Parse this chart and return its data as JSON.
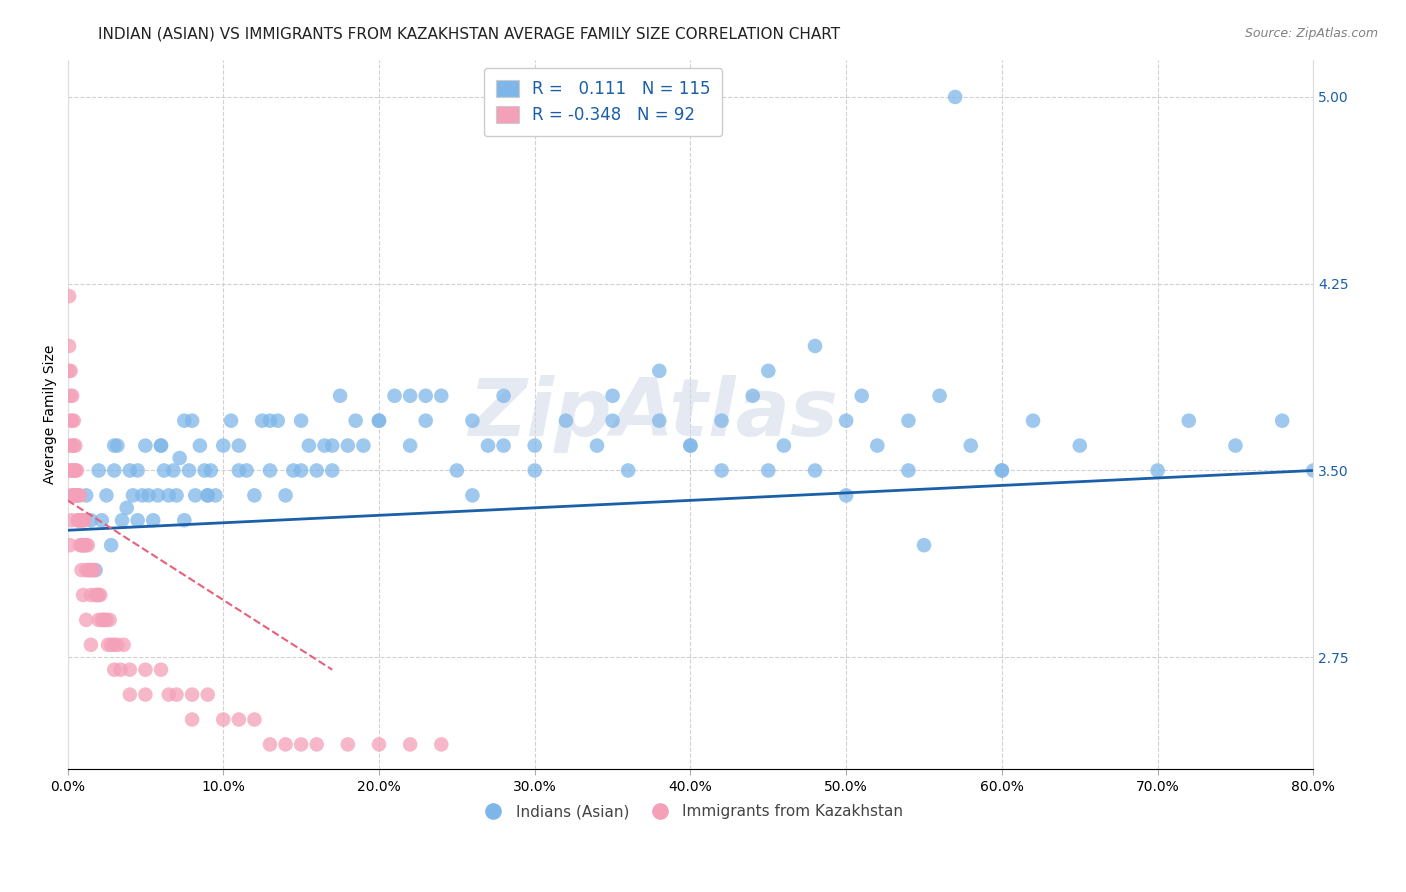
{
  "title": "INDIAN (ASIAN) VS IMMIGRANTS FROM KAZAKHSTAN AVERAGE FAMILY SIZE CORRELATION CHART",
  "source": "Source: ZipAtlas.com",
  "ylabel": "Average Family Size",
  "xlim": [
    0.0,
    0.8
  ],
  "ylim": [
    2.3,
    5.15
  ],
  "yticks": [
    2.75,
    3.5,
    4.25,
    5.0
  ],
  "xticks": [
    0.0,
    0.1,
    0.2,
    0.3,
    0.4,
    0.5,
    0.6,
    0.7,
    0.8
  ],
  "xtick_labels": [
    "0.0%",
    "10.0%",
    "20.0%",
    "30.0%",
    "40.0%",
    "50.0%",
    "60.0%",
    "70.0%",
    "80.0%"
  ],
  "ytick_labels": [
    "2.75",
    "3.50",
    "4.25",
    "5.00"
  ],
  "blue_color": "#7EB6E8",
  "pink_color": "#F4A0B8",
  "blue_line_color": "#1B5FA8",
  "pink_line_color": "#E8607A",
  "legend_r_blue": "0.111",
  "legend_n_blue": "115",
  "legend_r_pink": "-0.348",
  "legend_n_pink": "92",
  "watermark": "ZipAtlas",
  "watermark_color": "#D0D8E8",
  "blue_scatter_x": [
    0.01,
    0.012,
    0.015,
    0.018,
    0.02,
    0.022,
    0.025,
    0.028,
    0.03,
    0.032,
    0.035,
    0.038,
    0.04,
    0.042,
    0.045,
    0.048,
    0.05,
    0.052,
    0.055,
    0.058,
    0.06,
    0.062,
    0.065,
    0.068,
    0.07,
    0.072,
    0.075,
    0.078,
    0.08,
    0.082,
    0.085,
    0.088,
    0.09,
    0.092,
    0.095,
    0.1,
    0.105,
    0.11,
    0.115,
    0.12,
    0.125,
    0.13,
    0.135,
    0.14,
    0.145,
    0.15,
    0.155,
    0.16,
    0.165,
    0.17,
    0.175,
    0.18,
    0.185,
    0.19,
    0.2,
    0.21,
    0.22,
    0.23,
    0.24,
    0.25,
    0.26,
    0.27,
    0.28,
    0.3,
    0.32,
    0.34,
    0.36,
    0.38,
    0.4,
    0.42,
    0.44,
    0.46,
    0.48,
    0.5,
    0.52,
    0.54,
    0.56,
    0.58,
    0.6,
    0.62,
    0.65,
    0.7,
    0.72,
    0.75,
    0.78,
    0.8,
    0.03,
    0.045,
    0.06,
    0.075,
    0.09,
    0.11,
    0.13,
    0.15,
    0.17,
    0.2,
    0.23,
    0.26,
    0.3,
    0.35,
    0.4,
    0.45,
    0.5,
    0.55,
    0.6,
    0.42,
    0.38,
    0.35,
    0.28,
    0.22,
    0.45,
    0.48,
    0.51,
    0.54,
    0.57
  ],
  "blue_scatter_y": [
    3.2,
    3.4,
    3.3,
    3.1,
    3.5,
    3.3,
    3.4,
    3.2,
    3.5,
    3.6,
    3.3,
    3.35,
    3.5,
    3.4,
    3.3,
    3.4,
    3.6,
    3.4,
    3.3,
    3.4,
    3.6,
    3.5,
    3.4,
    3.5,
    3.4,
    3.55,
    3.3,
    3.5,
    3.7,
    3.4,
    3.6,
    3.5,
    3.4,
    3.5,
    3.4,
    3.6,
    3.7,
    3.5,
    3.5,
    3.4,
    3.7,
    3.5,
    3.7,
    3.4,
    3.5,
    3.7,
    3.6,
    3.5,
    3.6,
    3.5,
    3.8,
    3.6,
    3.7,
    3.6,
    3.7,
    3.8,
    3.6,
    3.7,
    3.8,
    3.5,
    3.7,
    3.6,
    3.8,
    3.5,
    3.7,
    3.6,
    3.5,
    3.7,
    3.6,
    3.5,
    3.8,
    3.6,
    3.5,
    3.7,
    3.6,
    3.5,
    3.8,
    3.6,
    3.5,
    3.7,
    3.6,
    3.5,
    3.7,
    3.6,
    3.7,
    3.5,
    3.6,
    3.5,
    3.6,
    3.7,
    3.4,
    3.6,
    3.7,
    3.5,
    3.6,
    3.7,
    3.8,
    3.4,
    3.6,
    3.8,
    3.6,
    3.5,
    3.4,
    3.2,
    3.5,
    3.7,
    3.9,
    3.7,
    3.6,
    3.8,
    3.9,
    4.0,
    3.8,
    3.7,
    5.0
  ],
  "pink_scatter_x": [
    0.001,
    0.001,
    0.001,
    0.0015,
    0.002,
    0.002,
    0.002,
    0.0025,
    0.003,
    0.003,
    0.003,
    0.0035,
    0.004,
    0.004,
    0.0045,
    0.005,
    0.005,
    0.0055,
    0.006,
    0.006,
    0.0065,
    0.007,
    0.0075,
    0.008,
    0.008,
    0.009,
    0.009,
    0.01,
    0.01,
    0.011,
    0.011,
    0.012,
    0.012,
    0.013,
    0.0135,
    0.014,
    0.015,
    0.015,
    0.016,
    0.017,
    0.018,
    0.019,
    0.02,
    0.02,
    0.021,
    0.022,
    0.023,
    0.024,
    0.025,
    0.026,
    0.027,
    0.028,
    0.03,
    0.03,
    0.032,
    0.034,
    0.036,
    0.04,
    0.04,
    0.05,
    0.05,
    0.06,
    0.065,
    0.07,
    0.08,
    0.08,
    0.09,
    0.1,
    0.11,
    0.12,
    0.13,
    0.14,
    0.15,
    0.16,
    0.18,
    0.2,
    0.22,
    0.24,
    0.001,
    0.001,
    0.002,
    0.002,
    0.003,
    0.004,
    0.005,
    0.006,
    0.007,
    0.008,
    0.009,
    0.01,
    0.012,
    0.015
  ],
  "pink_scatter_y": [
    3.9,
    3.6,
    3.5,
    3.2,
    3.7,
    3.5,
    3.4,
    3.3,
    3.8,
    3.6,
    3.5,
    3.4,
    3.7,
    3.5,
    3.4,
    3.6,
    3.5,
    3.4,
    3.5,
    3.4,
    3.3,
    3.4,
    3.3,
    3.4,
    3.3,
    3.3,
    3.2,
    3.3,
    3.2,
    3.3,
    3.2,
    3.2,
    3.1,
    3.2,
    3.1,
    3.1,
    3.1,
    3.0,
    3.1,
    3.1,
    3.0,
    3.0,
    3.0,
    2.9,
    3.0,
    2.9,
    2.9,
    2.9,
    2.9,
    2.8,
    2.9,
    2.8,
    2.8,
    2.7,
    2.8,
    2.7,
    2.8,
    2.7,
    2.6,
    2.7,
    2.6,
    2.7,
    2.6,
    2.6,
    2.6,
    2.5,
    2.6,
    2.5,
    2.5,
    2.5,
    2.4,
    2.4,
    2.4,
    2.4,
    2.4,
    2.4,
    2.4,
    2.4,
    4.2,
    4.0,
    3.9,
    3.8,
    3.7,
    3.6,
    3.5,
    3.4,
    3.3,
    3.2,
    3.1,
    3.0,
    2.9,
    2.8
  ],
  "blue_trendline_x": [
    0.0,
    0.8
  ],
  "blue_trendline_y": [
    3.26,
    3.5
  ],
  "pink_trendline_x": [
    0.0,
    0.17
  ],
  "pink_trendline_y": [
    3.38,
    2.7
  ],
  "background_color": "#FFFFFF",
  "grid_color": "#CCCCCC",
  "title_fontsize": 11,
  "axis_fontsize": 10,
  "tick_fontsize": 10
}
